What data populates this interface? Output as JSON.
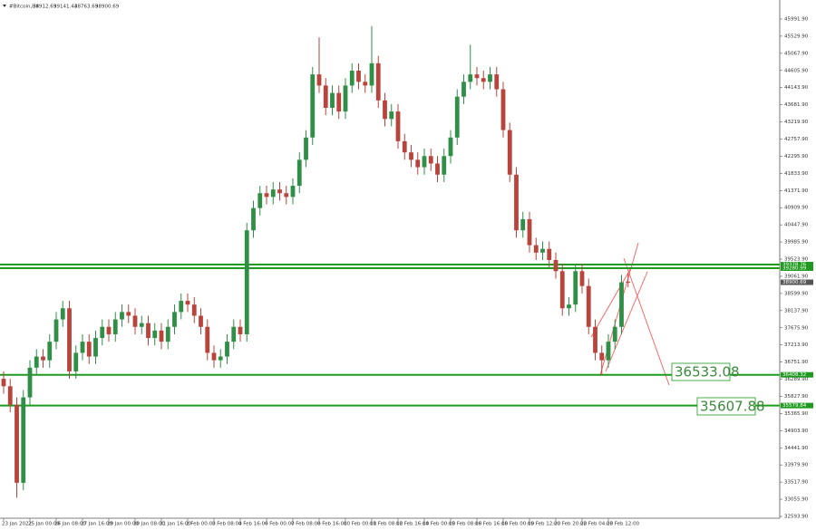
{
  "chart_data": {
    "type": "candlestick",
    "title": "#Bitcoin,H4",
    "categories": [
      "23 Jan 2022",
      null,
      null,
      null,
      "25 Jan 00:00",
      null,
      null,
      null,
      "26 Jan 08:00",
      null,
      null,
      null,
      "27 Jan 16:00",
      null,
      null,
      null,
      "29 Jan 00:00",
      null,
      null,
      null,
      "30 Jan 08:00",
      null,
      null,
      null,
      "31 Jan 16:00",
      null,
      null,
      null,
      "2 Feb 00:00",
      null,
      null,
      null,
      "3 Feb 08:00",
      null,
      null,
      null,
      "4 Feb 16:00",
      null,
      null,
      null,
      "6 Feb 00:00",
      null,
      null,
      null,
      "7 Feb 08:00",
      null,
      null,
      null,
      "8 Feb 16:00",
      null,
      null,
      null,
      "10 Feb 00:00",
      null,
      null,
      null,
      "11 Feb 08:00",
      null,
      null,
      null,
      "12 Feb 16:00",
      null,
      null,
      null,
      "14 Feb 00:00",
      null,
      null,
      null,
      "15 Feb 08:00",
      null,
      null,
      null,
      "16 Feb 16:00",
      null,
      null,
      null,
      "18 Feb 00:00",
      null,
      null,
      null,
      "19 Feb 12:00",
      null,
      null,
      null,
      "20 Feb 20:00",
      null,
      null,
      null,
      "22 Feb 04:00",
      null,
      null,
      null,
      "23 Feb 12:00",
      null,
      null,
      null
    ],
    "open": [
      36300,
      36100,
      35600,
      33500,
      35800,
      36600,
      36900,
      36800,
      37300,
      37900,
      38200,
      36500,
      37000,
      37300,
      36900,
      37400,
      37700,
      37500,
      37900,
      38100,
      38000,
      37700,
      37800,
      37400,
      37600,
      37300,
      37700,
      38100,
      38400,
      38300,
      38000,
      37700,
      37000,
      36800,
      36900,
      37300,
      37700,
      37500,
      40300,
      40900,
      41300,
      41200,
      41400,
      41300,
      41200,
      41500,
      42200,
      42800,
      44500,
      44200,
      43600,
      44000,
      43500,
      44200,
      44600,
      44300,
      44200,
      44800,
      43800,
      43300,
      43500,
      42700,
      42400,
      42200,
      42000,
      42300,
      42100,
      41800,
      42300,
      42800,
      43900,
      44300,
      44500,
      44400,
      44300,
      44500,
      44100,
      43000,
      41800,
      40300,
      40600,
      39900,
      39700,
      39800,
      39500,
      39200,
      38200,
      38300,
      39200,
      38800,
      37700,
      37000,
      36800,
      37300,
      37700,
      38912.69
    ],
    "high": [
      36500,
      36300,
      35800,
      36000,
      36800,
      37100,
      37100,
      37500,
      38100,
      38400,
      38400,
      37200,
      37500,
      37500,
      37600,
      37900,
      37900,
      38100,
      38300,
      38300,
      38200,
      38000,
      38000,
      37800,
      37800,
      37900,
      38300,
      38600,
      38600,
      38500,
      38200,
      37900,
      37200,
      37100,
      37500,
      37900,
      37900,
      40500,
      41100,
      41500,
      41500,
      41600,
      41600,
      41500,
      41700,
      42400,
      43000,
      44700,
      45500,
      44400,
      44200,
      44200,
      44400,
      44800,
      44800,
      44500,
      45800,
      45000,
      44000,
      43700,
      43700,
      42900,
      42600,
      42400,
      42500,
      42500,
      42300,
      42500,
      43000,
      44100,
      44500,
      45300,
      44700,
      44600,
      44700,
      44700,
      44300,
      43200,
      42000,
      40800,
      40800,
      40100,
      40000,
      40000,
      39700,
      39400,
      38500,
      39400,
      39400,
      39000,
      37900,
      37200,
      37500,
      37900,
      39100,
      39141.44
    ],
    "low": [
      35900,
      35400,
      33100,
      33300,
      35600,
      36400,
      36600,
      36600,
      37100,
      37700,
      36300,
      36300,
      36800,
      36700,
      36700,
      37200,
      37300,
      37300,
      37700,
      37800,
      37500,
      37500,
      37200,
      37200,
      37100,
      37100,
      37500,
      37900,
      38100,
      37800,
      37500,
      36800,
      36600,
      36600,
      36700,
      37100,
      37300,
      37300,
      40100,
      40700,
      41000,
      41000,
      41100,
      41000,
      41000,
      41300,
      42000,
      42600,
      44000,
      43400,
      43400,
      43300,
      43300,
      44000,
      44100,
      44000,
      44000,
      43600,
      43100,
      43100,
      42500,
      42200,
      42000,
      41800,
      41800,
      41900,
      41600,
      41600,
      42100,
      42600,
      43700,
      44100,
      44200,
      44100,
      44100,
      43900,
      42800,
      41600,
      40100,
      40100,
      39700,
      39500,
      39500,
      39300,
      39000,
      38000,
      38000,
      38100,
      38600,
      37500,
      36800,
      36400,
      36600,
      37100,
      37500,
      38763.69
    ],
    "close": [
      36100,
      35600,
      33500,
      35800,
      36600,
      36900,
      36800,
      37300,
      37900,
      38200,
      36500,
      37000,
      37300,
      36900,
      37400,
      37700,
      37500,
      37900,
      38100,
      38000,
      37700,
      37800,
      37400,
      37600,
      37300,
      37700,
      38100,
      38400,
      38300,
      38000,
      37700,
      37000,
      36800,
      36900,
      37300,
      37700,
      37500,
      40300,
      40900,
      41300,
      41200,
      41400,
      41300,
      41200,
      41500,
      42200,
      42800,
      44500,
      44200,
      43600,
      44000,
      43500,
      44200,
      44600,
      44300,
      44200,
      44800,
      43800,
      43300,
      43500,
      42700,
      42400,
      42200,
      42000,
      42300,
      42100,
      41800,
      42300,
      42800,
      43900,
      44300,
      44500,
      44400,
      44300,
      44500,
      44100,
      43000,
      41800,
      40300,
      40600,
      39900,
      39700,
      39800,
      39500,
      39200,
      38200,
      38300,
      39200,
      38800,
      37700,
      37000,
      36800,
      37300,
      37700,
      38900,
      38900.69
    ],
    "up_color": "#2f8f46",
    "down_color": "#b8443c",
    "levels": [
      39378.76,
      39280.99,
      36408.32,
      35579.84
    ],
    "level_color": "#1e9a1e",
    "annotations": [
      "36533.08",
      "35607.88"
    ],
    "ylim": [
      32545,
      46504
    ],
    "yticks": [
      {
        "value": 32593.9,
        "label": "32593.90"
      },
      {
        "value": 33055.9,
        "label": "33055.90"
      },
      {
        "value": 33517.9,
        "label": "33517.90"
      },
      {
        "value": 33979.9,
        "label": "33979.90"
      },
      {
        "value": 34441.9,
        "label": "34441.90"
      },
      {
        "value": 34903.9,
        "label": "34903.90"
      },
      {
        "value": 35365.9,
        "label": "35365.90"
      },
      {
        "value": 35827.9,
        "label": "35827.90"
      },
      {
        "value": 36289.9,
        "label": "36289.90"
      },
      {
        "value": 36751.9,
        "label": "36751.90"
      },
      {
        "value": 37213.9,
        "label": "37213.90"
      },
      {
        "value": 37675.9,
        "label": "37675.90"
      },
      {
        "value": 38137.9,
        "label": "38137.90"
      },
      {
        "value": 38599.9,
        "label": "38599.90"
      },
      {
        "value": 39061.9,
        "label": "39061.90"
      },
      {
        "value": 39523.9,
        "label": "39523.90"
      },
      {
        "value": 39985.9,
        "label": "39985.90"
      },
      {
        "value": 40447.9,
        "label": "40447.90"
      },
      {
        "value": 40909.9,
        "label": "40909.90"
      },
      {
        "value": 41371.9,
        "label": "41371.90"
      },
      {
        "value": 41833.9,
        "label": "41833.90"
      },
      {
        "value": 42295.9,
        "label": "42295.90"
      },
      {
        "value": 42757.9,
        "label": "42757.90"
      },
      {
        "value": 43219.9,
        "label": "43219.90"
      },
      {
        "value": 43681.9,
        "label": "43681.90"
      },
      {
        "value": 44143.9,
        "label": "44143.90"
      },
      {
        "value": 44605.9,
        "label": "44605.90"
      },
      {
        "value": 45067.9,
        "label": "45067.90"
      },
      {
        "value": 45529.9,
        "label": "45529.90"
      },
      {
        "value": 45991.9,
        "label": "45991.90"
      }
    ]
  }
}
